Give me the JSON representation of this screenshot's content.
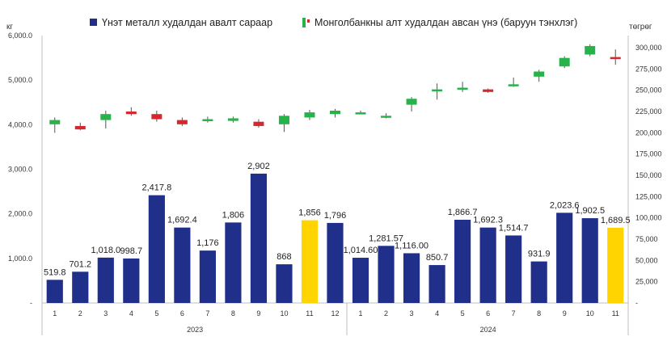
{
  "chart_data": {
    "type": "bar+candlestick",
    "left_axis_unit": "кг",
    "right_axis_unit": "төгрөг",
    "left_axis_ticks": [
      "-",
      "1,000.0",
      "2,000.0",
      "3,000.0",
      "4,000.0",
      "5,000.0",
      "6,000.0"
    ],
    "right_axis_ticks": [
      "-",
      "25,000",
      "50,000",
      "75,000",
      "100,000",
      "125,000",
      "150,000",
      "175,000",
      "200,000",
      "225,000",
      "250,000",
      "275,000",
      "300,000"
    ],
    "ylim_left": [
      0,
      6000
    ],
    "ylim_right": [
      0,
      314285
    ],
    "legend": [
      {
        "label": "Үнэт металл худалдан авалт сараар",
        "color": "#1f2f8a"
      },
      {
        "label": "Монголбанкны алт худалдан авсан үнэ (баруун тэнхлэг)",
        "color": "#27b34a"
      }
    ],
    "colors": {
      "bar": "#1f2f8a",
      "highlight": "#ffd400",
      "up": "#27b34a",
      "down": "#d9262c",
      "wick": "#555555"
    },
    "years": [
      {
        "label": "2023",
        "months": 12
      },
      {
        "label": "2024",
        "months": 11
      }
    ],
    "points": [
      {
        "month": "1",
        "value": 519.8,
        "label": "519.8",
        "open": 210000,
        "close": 215000,
        "high": 218000,
        "low": 200000
      },
      {
        "month": "2",
        "value": 701.2,
        "label": "701.2",
        "open": 208000,
        "close": 204000,
        "high": 212000,
        "low": 203000
      },
      {
        "month": "3",
        "value": 1018.0,
        "label": "1,018.0",
        "open": 215000,
        "close": 222000,
        "high": 226000,
        "low": 205000
      },
      {
        "month": "4",
        "value": 998.7,
        "label": "998.7",
        "open": 225000,
        "close": 222000,
        "high": 230000,
        "low": 220000
      },
      {
        "month": "5",
        "value": 2417.8,
        "label": "2,417.8",
        "open": 222000,
        "close": 216000,
        "high": 226000,
        "low": 213000
      },
      {
        "month": "6",
        "value": 1692.4,
        "label": "1,692.4",
        "open": 215000,
        "close": 210000,
        "high": 218000,
        "low": 208000
      },
      {
        "month": "7",
        "value": 1176,
        "label": "1,176",
        "open": 214000,
        "close": 216000,
        "high": 219000,
        "low": 212000
      },
      {
        "month": "8",
        "value": 1806,
        "label": "1,806",
        "open": 214000,
        "close": 217000,
        "high": 219000,
        "low": 212000
      },
      {
        "month": "9",
        "value": 2902,
        "label": "2,902",
        "open": 213000,
        "close": 208000,
        "high": 216000,
        "low": 206000
      },
      {
        "month": "10",
        "value": 868,
        "label": "868",
        "open": 210000,
        "close": 220000,
        "high": 222000,
        "low": 201000
      },
      {
        "month": "11",
        "value": 1856,
        "label": "1,856",
        "highlight": true,
        "open": 218000,
        "close": 224000,
        "high": 227000,
        "low": 215000
      },
      {
        "month": "12",
        "value": 1796,
        "label": "1,796",
        "open": 222000,
        "close": 226000,
        "high": 228000,
        "low": 218000
      },
      {
        "month": "1",
        "value": 1014.6,
        "label": "1,014.60",
        "open": 223000,
        "close": 224000,
        "high": 226000,
        "low": 222000
      },
      {
        "month": "2",
        "value": 1281.57,
        "label": "1,281.57",
        "open": 219000,
        "close": 220000,
        "high": 223000,
        "low": 217000
      },
      {
        "month": "3",
        "value": 1116.0,
        "label": "1,116.00",
        "open": 233000,
        "close": 240000,
        "high": 242000,
        "low": 225000
      },
      {
        "month": "4",
        "value": 850.7,
        "label": "850.7",
        "open": 250000,
        "close": 251000,
        "high": 258000,
        "low": 239000
      },
      {
        "month": "5",
        "value": 1866.7,
        "label": "1,866.7",
        "open": 252000,
        "close": 253000,
        "high": 260000,
        "low": 248000
      },
      {
        "month": "6",
        "value": 1692.3,
        "label": "1,692.3",
        "open": 251000,
        "close": 248000,
        "high": 252000,
        "low": 247000
      },
      {
        "month": "7",
        "value": 1514.7,
        "label": "1,514.7",
        "open": 256000,
        "close": 257000,
        "high": 265000,
        "low": 254000
      },
      {
        "month": "8",
        "value": 931.9,
        "label": "931.9",
        "open": 266000,
        "close": 272000,
        "high": 274000,
        "low": 260000
      },
      {
        "month": "9",
        "value": 2023.6,
        "label": "2,023.6",
        "open": 278000,
        "close": 288000,
        "high": 290000,
        "low": 276000
      },
      {
        "month": "10",
        "value": 1902.5,
        "label": "1,902.5",
        "open": 292000,
        "close": 302000,
        "high": 304000,
        "low": 290000
      },
      {
        "month": "11",
        "value": 1689.5,
        "label": "1,689.5",
        "highlight": true,
        "open": 289000,
        "close": 288000,
        "high": 298000,
        "low": 280000
      }
    ]
  }
}
